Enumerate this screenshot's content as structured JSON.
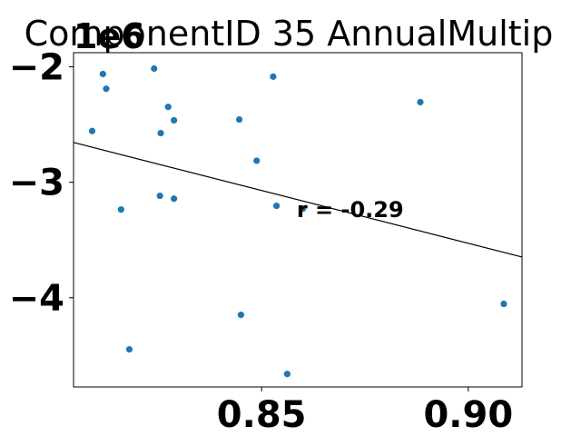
{
  "chart_data": {
    "type": "scatter",
    "title": "ComponentID 35 AnnualMultip",
    "offset_label": "1e6",
    "xlabel": "",
    "ylabel": "",
    "xlim": [
      0.8045,
      0.913
    ],
    "ylim": [
      -4.7726,
      -1.8774
    ],
    "x_ticks": [
      0.85,
      0.9
    ],
    "x_tick_labels": [
      "0.85",
      "0.90"
    ],
    "y_ticks": [
      -2,
      -3,
      -4
    ],
    "y_tick_labels": [
      "−2",
      "−3",
      "−4"
    ],
    "grid": false,
    "point_color": "#1f77b4",
    "line_color": "#000000",
    "points": [
      {
        "x": 0.8116,
        "y": -2.062
      },
      {
        "x": 0.8124,
        "y": -2.19
      },
      {
        "x": 0.809,
        "y": -2.556
      },
      {
        "x": 0.824,
        "y": -2.015
      },
      {
        "x": 0.8274,
        "y": -2.347
      },
      {
        "x": 0.8256,
        "y": -2.574
      },
      {
        "x": 0.8288,
        "y": -2.463
      },
      {
        "x": 0.8446,
        "y": -2.456
      },
      {
        "x": 0.8528,
        "y": -2.085
      },
      {
        "x": 0.8488,
        "y": -2.813
      },
      {
        "x": 0.8254,
        "y": -3.117
      },
      {
        "x": 0.8288,
        "y": -3.142
      },
      {
        "x": 0.816,
        "y": -3.236
      },
      {
        "x": 0.8536,
        "y": -3.204
      },
      {
        "x": 0.86,
        "y": -3.228
      },
      {
        "x": 0.8884,
        "y": -2.306
      },
      {
        "x": 0.9086,
        "y": -4.053
      },
      {
        "x": 0.845,
        "y": -4.148
      },
      {
        "x": 0.818,
        "y": -4.447
      },
      {
        "x": 0.8562,
        "y": -4.66
      }
    ],
    "trendline": {
      "x": [
        0.8045,
        0.913
      ],
      "y": [
        -2.655,
        -3.647
      ]
    },
    "annotation": {
      "text": "r = -0.29",
      "x": 0.8585,
      "y": -3.24
    }
  }
}
